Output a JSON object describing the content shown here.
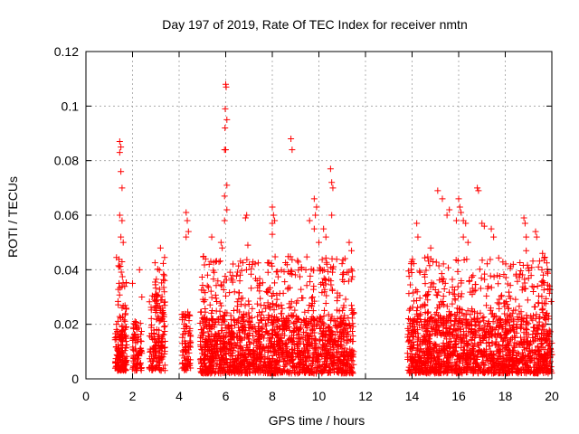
{
  "chart_data": {
    "type": "scatter",
    "title": "Day 197 of 2019, Rate Of TEC Index for receiver nmtn",
    "xlabel": "GPS time / hours",
    "ylabel": "ROTI / TECUs",
    "xlim": [
      0,
      20
    ],
    "ylim": [
      0,
      0.12
    ],
    "xticks": [
      0,
      2,
      4,
      6,
      8,
      10,
      12,
      14,
      16,
      18,
      20
    ],
    "yticks": [
      0,
      0.02,
      0.04,
      0.06,
      0.08,
      0.1,
      0.12
    ],
    "xtick_labels": [
      "0",
      "2",
      "4",
      "6",
      "8",
      "10",
      "12",
      "14",
      "16",
      "18",
      "20"
    ],
    "ytick_labels": [
      "0",
      "0.02",
      "0.04",
      "0.06",
      "0.08",
      "0.1",
      "0.12"
    ],
    "grid": true,
    "marker": "+",
    "color": "#ff0000",
    "series": [
      {
        "name": "ROTI",
        "clusters": [
          {
            "x_range": [
              1.25,
              1.75
            ],
            "y_range": [
              0.003,
              0.018
            ],
            "count": 140
          },
          {
            "x_range": [
              1.3,
              1.75
            ],
            "y_range": [
              0.018,
              0.045
            ],
            "count": 40
          },
          {
            "x_range": [
              2.0,
              2.4
            ],
            "y_range": [
              0.003,
              0.022
            ],
            "count": 80
          },
          {
            "x_range": [
              2.7,
              3.4
            ],
            "y_range": [
              0.003,
              0.03
            ],
            "count": 160
          },
          {
            "x_range": [
              2.8,
              3.4
            ],
            "y_range": [
              0.03,
              0.045
            ],
            "count": 25
          },
          {
            "x_range": [
              4.1,
              4.5
            ],
            "y_range": [
              0.003,
              0.025
            ],
            "count": 80
          },
          {
            "x_range": [
              4.9,
              11.5
            ],
            "y_range": [
              0.002,
              0.022
            ],
            "count": 1400
          },
          {
            "x_range": [
              4.9,
              11.5
            ],
            "y_range": [
              0.022,
              0.045
            ],
            "count": 320
          },
          {
            "x_range": [
              13.8,
              20.0
            ],
            "y_range": [
              0.002,
              0.022
            ],
            "count": 1300
          },
          {
            "x_range": [
              13.8,
              20.0
            ],
            "y_range": [
              0.022,
              0.045
            ],
            "count": 300
          }
        ],
        "points": [
          [
            1.45,
            0.087
          ],
          [
            1.5,
            0.085
          ],
          [
            1.45,
            0.083
          ],
          [
            1.5,
            0.076
          ],
          [
            1.55,
            0.07
          ],
          [
            1.45,
            0.06
          ],
          [
            1.55,
            0.058
          ],
          [
            1.5,
            0.052
          ],
          [
            1.6,
            0.05
          ],
          [
            2.0,
            0.035
          ],
          [
            2.3,
            0.04
          ],
          [
            2.4,
            0.03
          ],
          [
            3.2,
            0.048
          ],
          [
            4.3,
            0.061
          ],
          [
            4.35,
            0.058
          ],
          [
            4.4,
            0.054
          ],
          [
            4.3,
            0.052
          ],
          [
            5.4,
            0.052
          ],
          [
            5.8,
            0.05
          ],
          [
            5.85,
            0.048
          ],
          [
            5.95,
            0.058
          ],
          [
            6.0,
            0.108
          ],
          [
            6.02,
            0.107
          ],
          [
            5.98,
            0.099
          ],
          [
            6.05,
            0.095
          ],
          [
            5.97,
            0.092
          ],
          [
            5.95,
            0.084
          ],
          [
            6.0,
            0.084
          ],
          [
            6.05,
            0.071
          ],
          [
            5.95,
            0.067
          ],
          [
            6.05,
            0.062
          ],
          [
            6.9,
            0.06
          ],
          [
            6.85,
            0.059
          ],
          [
            6.95,
            0.049
          ],
          [
            8.0,
            0.063
          ],
          [
            8.05,
            0.06
          ],
          [
            8.0,
            0.057
          ],
          [
            8.1,
            0.058
          ],
          [
            8.0,
            0.053
          ],
          [
            8.8,
            0.088
          ],
          [
            8.85,
            0.084
          ],
          [
            9.6,
            0.058
          ],
          [
            9.8,
            0.066
          ],
          [
            9.9,
            0.063
          ],
          [
            9.85,
            0.06
          ],
          [
            9.8,
            0.055
          ],
          [
            10.0,
            0.05
          ],
          [
            10.2,
            0.055
          ],
          [
            10.3,
            0.052
          ],
          [
            10.5,
            0.077
          ],
          [
            10.55,
            0.072
          ],
          [
            10.6,
            0.07
          ],
          [
            10.55,
            0.06
          ],
          [
            11.3,
            0.05
          ],
          [
            11.4,
            0.047
          ],
          [
            14.2,
            0.057
          ],
          [
            14.25,
            0.052
          ],
          [
            14.8,
            0.048
          ],
          [
            15.1,
            0.069
          ],
          [
            15.3,
            0.066
          ],
          [
            15.6,
            0.062
          ],
          [
            15.9,
            0.058
          ],
          [
            15.5,
            0.06
          ],
          [
            16.0,
            0.066
          ],
          [
            16.05,
            0.063
          ],
          [
            16.1,
            0.061
          ],
          [
            16.2,
            0.058
          ],
          [
            16.3,
            0.057
          ],
          [
            16.8,
            0.07
          ],
          [
            16.85,
            0.069
          ],
          [
            17.0,
            0.057
          ],
          [
            17.1,
            0.056
          ],
          [
            17.4,
            0.055
          ],
          [
            17.5,
            0.052
          ],
          [
            16.4,
            0.05
          ],
          [
            16.2,
            0.052
          ],
          [
            18.8,
            0.059
          ],
          [
            18.85,
            0.057
          ],
          [
            18.9,
            0.052
          ],
          [
            19.3,
            0.054
          ],
          [
            19.35,
            0.052
          ],
          [
            18.9,
            0.047
          ],
          [
            19.6,
            0.046
          ]
        ]
      }
    ]
  }
}
